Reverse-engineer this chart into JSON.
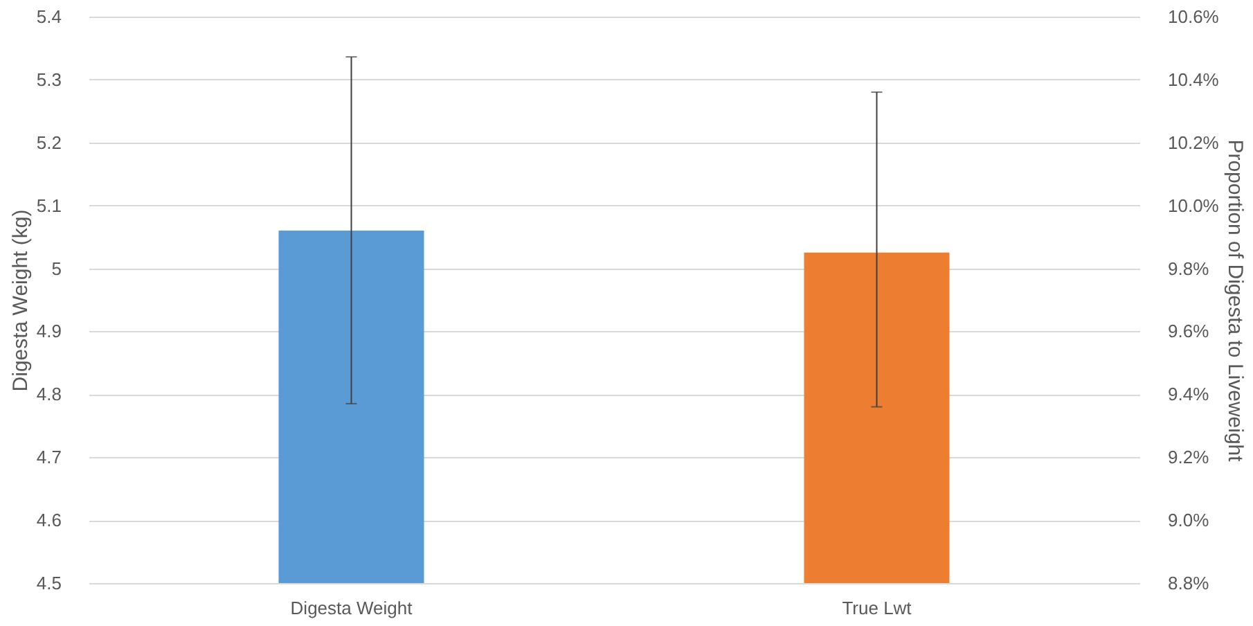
{
  "chart_data": {
    "type": "bar",
    "categories": [
      "Digesta Weight",
      "True Lwt"
    ],
    "ylabel": "Digesta Weight (kg)",
    "y2label": "Proportion of Digesta to Liveweight",
    "series": [
      {
        "color": "#5b9bd5",
        "values": [
          5.06,
          null
        ],
        "errors": [
          [
            4.785,
            5.336
          ],
          null
        ]
      },
      {
        "color": "#ed7d31",
        "axis": "y2",
        "values": [
          null,
          9.85
        ],
        "errors": [
          null,
          [
            9.36,
            10.36
          ]
        ]
      }
    ],
    "ylim": [
      4.5,
      5.4
    ],
    "yticks": [
      4.5,
      4.6,
      4.7,
      4.8,
      4.9,
      5,
      5.1,
      5.2,
      5.3,
      5.4
    ],
    "y2lim": [
      8.8,
      10.6
    ],
    "y2ticks": [
      {
        "value": 8.8,
        "label": "8.8%"
      },
      {
        "value": 9.0,
        "label": "9.0%"
      },
      {
        "value": 9.2,
        "label": "9.2%"
      },
      {
        "value": 9.4,
        "label": "9.4%"
      },
      {
        "value": 9.6,
        "label": "9.6%"
      },
      {
        "value": 9.8,
        "label": "9.8%"
      },
      {
        "value": 10.0,
        "label": "10.0%"
      },
      {
        "value": 10.2,
        "label": "10.2%"
      },
      {
        "value": 10.4,
        "label": "10.4%"
      },
      {
        "value": 10.6,
        "label": "10.6%"
      }
    ],
    "grid": "y"
  }
}
